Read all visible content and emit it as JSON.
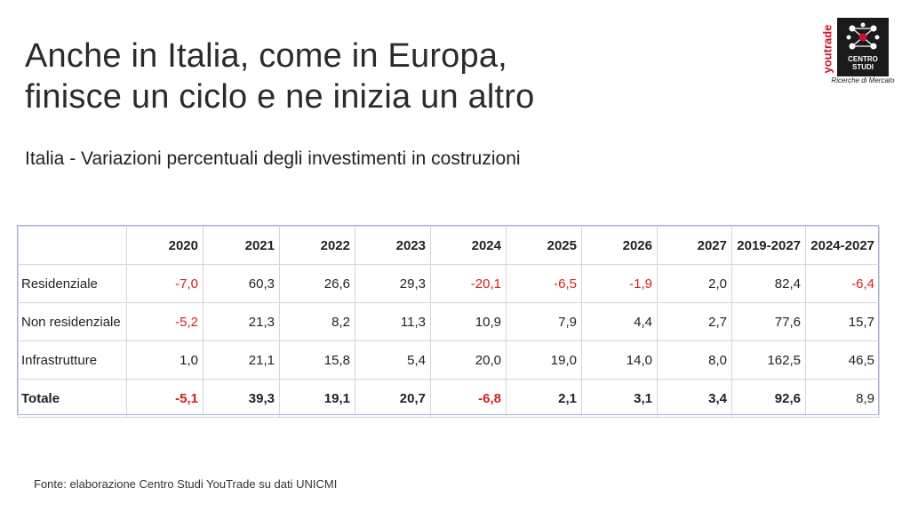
{
  "title_line1": "Anche in Italia, come in Europa,",
  "title_line2": "finisce un ciclo e ne inizia un altro",
  "subtitle": "Italia -  Variazioni percentuali degli investimenti in costruzioni",
  "logo": {
    "brand": "youtrade",
    "line1": "CENTRO",
    "line2": "STUDI",
    "tagline": "Ricerche di Mercato"
  },
  "table": {
    "columns": [
      "2020",
      "2021",
      "2022",
      "2023",
      "2024",
      "2025",
      "2026",
      "2027",
      "2019-2027",
      "2024-2027"
    ],
    "rows": [
      {
        "label": "Residenziale",
        "values": [
          "-7,0",
          "60,3",
          "26,6",
          "29,3",
          "-20,1",
          "-6,5",
          "-1,9",
          "2,0",
          "82,4",
          "-6,4"
        ]
      },
      {
        "label": "Non residenziale",
        "values": [
          "-5,2",
          "21,3",
          "8,2",
          "11,3",
          "10,9",
          "7,9",
          "4,4",
          "2,7",
          "77,6",
          "15,7"
        ]
      },
      {
        "label": "Infrastrutture",
        "values": [
          "1,0",
          "21,1",
          "15,8",
          "5,4",
          "20,0",
          "19,0",
          "14,0",
          "8,0",
          "162,5",
          "46,5"
        ]
      },
      {
        "label": "Totale",
        "values": [
          "-5,1",
          "39,3",
          "19,1",
          "20,7",
          "-6,8",
          "2,1",
          "3,1",
          "3,4",
          "92,6",
          "8,9"
        ]
      }
    ]
  },
  "source": "Fonte: elaborazione Centro Studi YouTrade su dati UNICMI",
  "colors": {
    "negative": "#d21f1f",
    "border": "#9fb5d6",
    "logo_red": "#c8102e"
  }
}
